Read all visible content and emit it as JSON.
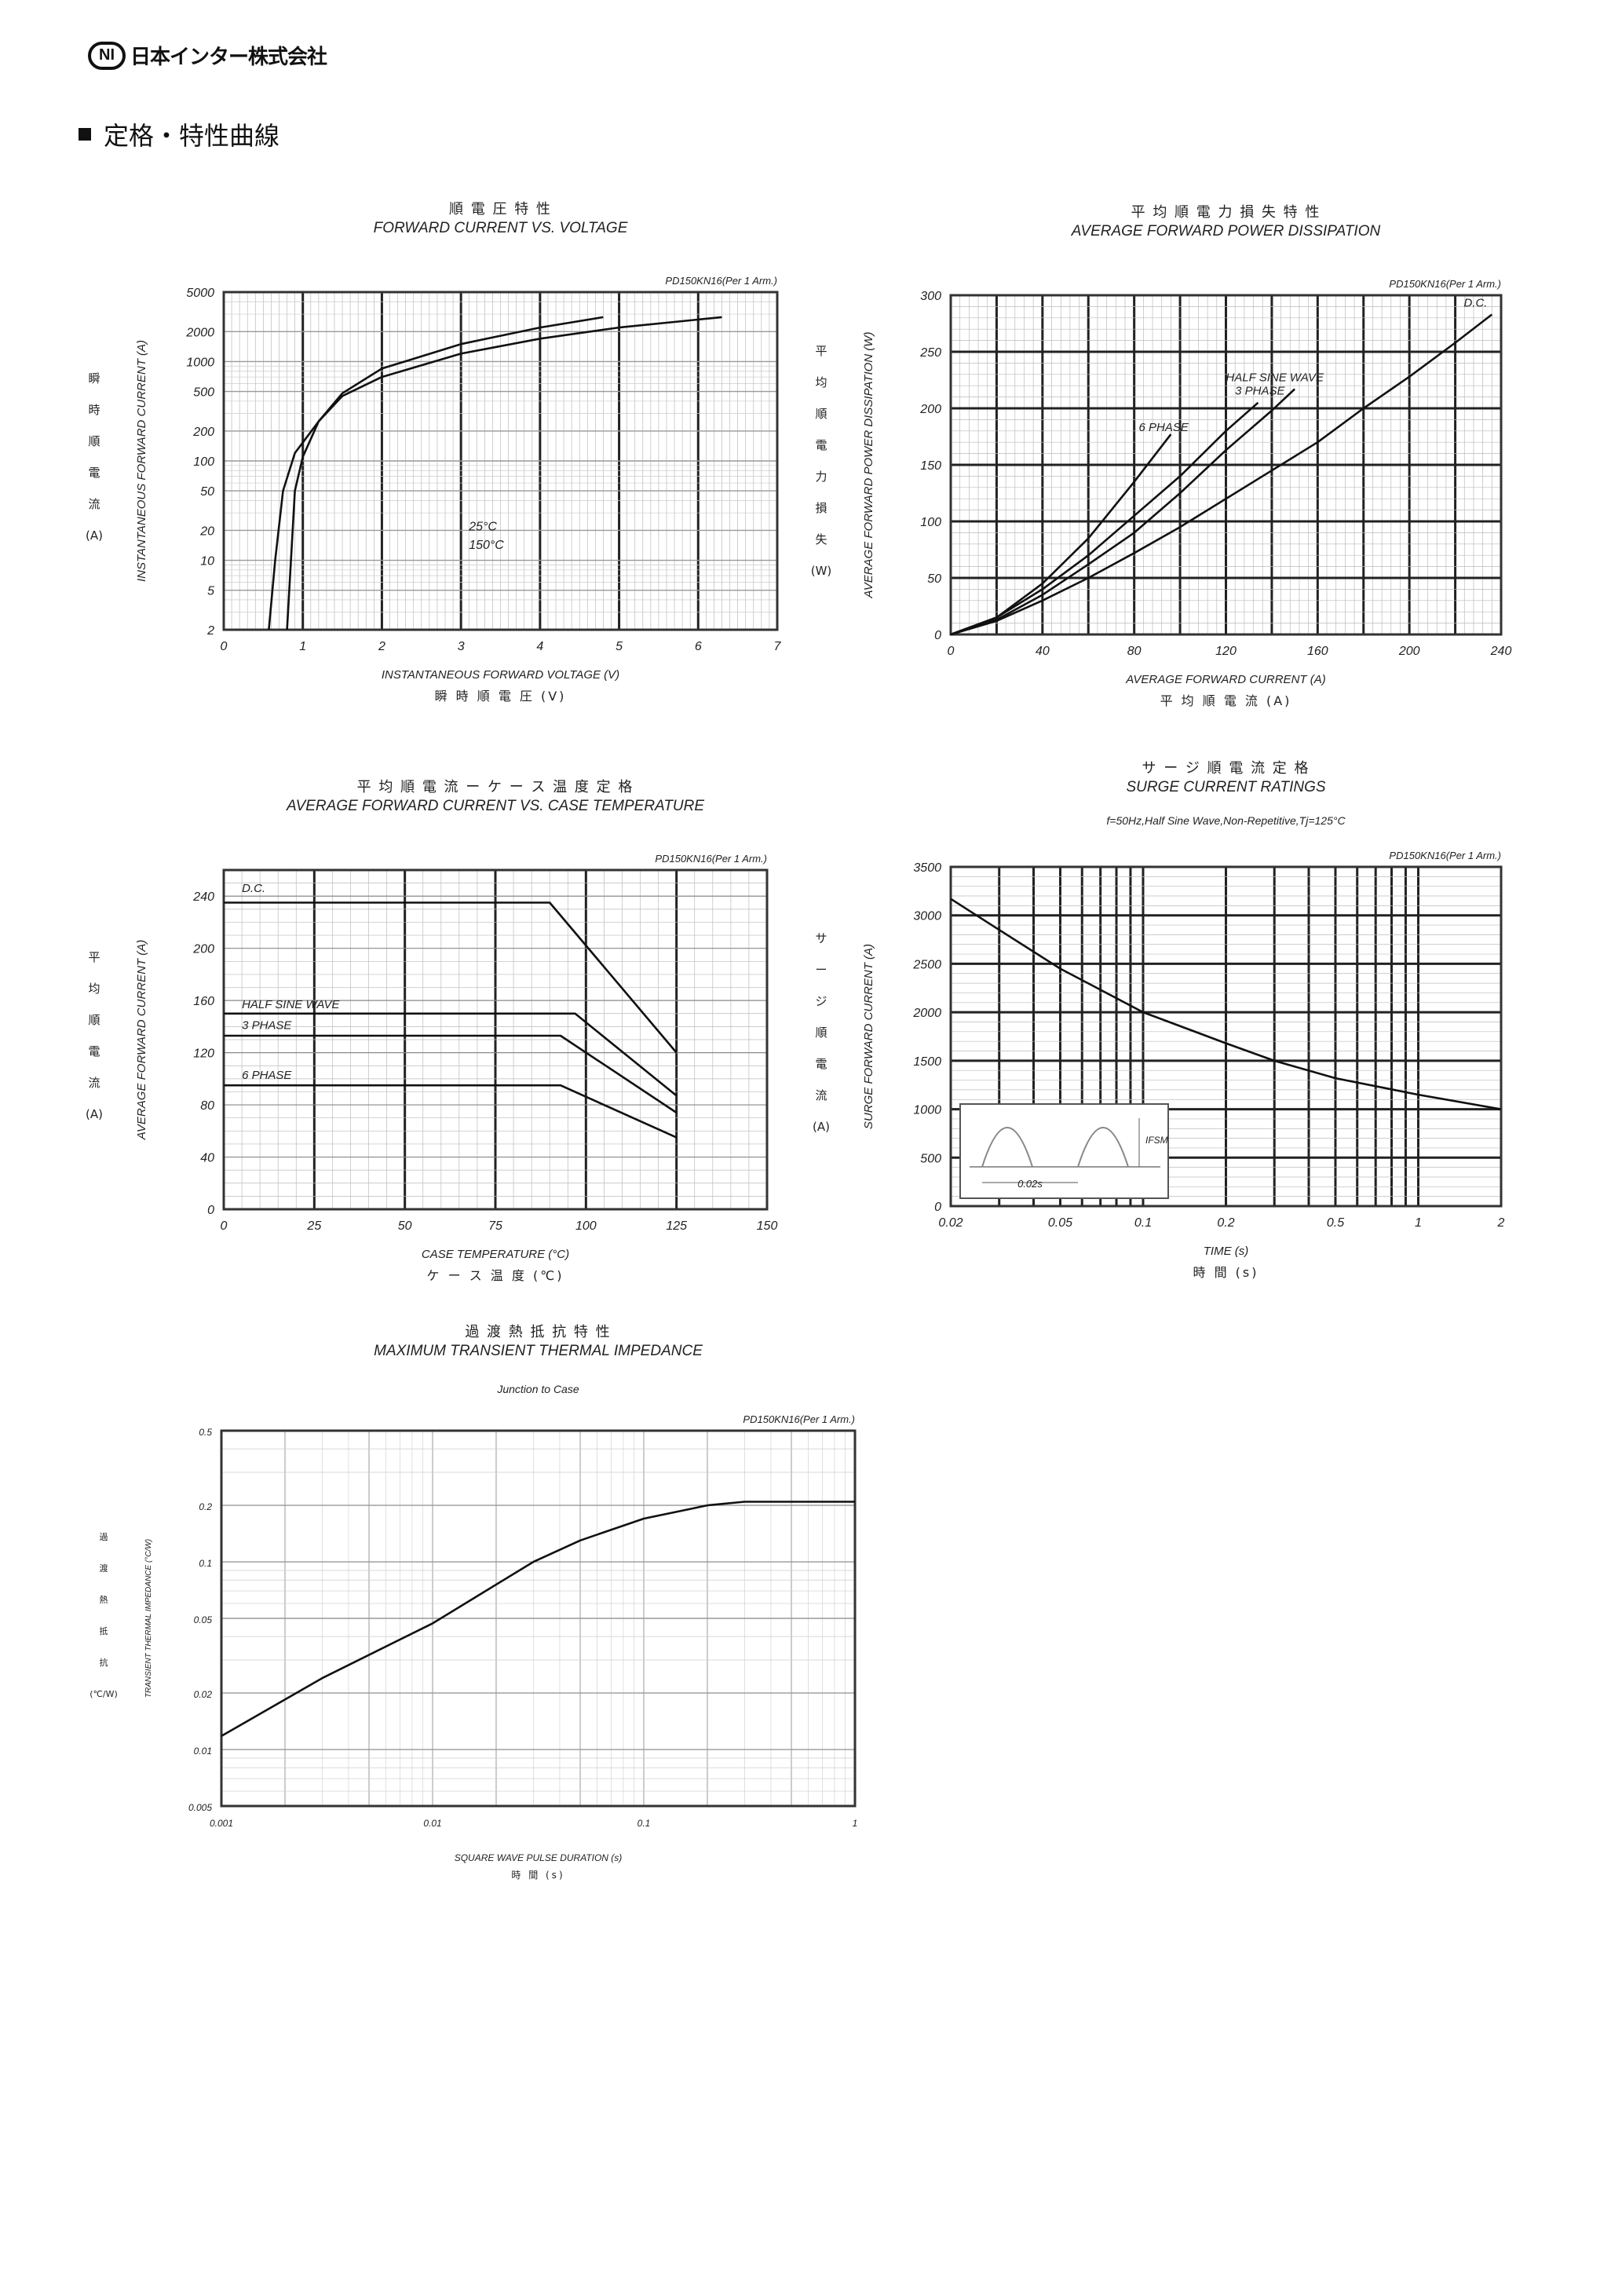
{
  "header": {
    "company": "日本インター株式会社",
    "logo_mark": "NI",
    "section_title": "定格・特性曲線"
  },
  "chart_data": [
    {
      "type": "line",
      "title_jp": "順 電 圧 特 性",
      "title": "FORWARD CURRENT VS. VOLTAGE",
      "model": "PD150KN16(Per 1 Arm.)",
      "xlabel": "INSTANTANEOUS FORWARD VOLTAGE (V)",
      "xlabel_jp": "瞬 時 順 電 圧  (V)",
      "ylabel": "INSTANTANEOUS FORWARD CURRENT (A)",
      "ylabel_jp": [
        "瞬",
        "時",
        "順",
        "電",
        "流",
        "(A)"
      ],
      "xlim": [
        0,
        7
      ],
      "ylim": [
        2,
        5000
      ],
      "yscale": "log",
      "xticks": [
        "0",
        "1",
        "2",
        "3",
        "4",
        "5",
        "6",
        "7"
      ],
      "yticks": [
        "2",
        "5",
        "10",
        "20",
        "50",
        "100",
        "200",
        "500",
        "1000",
        "2000",
        "5000"
      ],
      "grid": true,
      "series": [
        {
          "name": "25°C",
          "x": [
            0.8,
            0.85,
            0.9,
            1.0,
            1.2,
            1.5,
            2,
            3,
            4,
            5,
            6.3
          ],
          "y": [
            2,
            10,
            50,
            110,
            250,
            450,
            700,
            1200,
            1700,
            2200,
            2800
          ]
        },
        {
          "name": "150°C",
          "x": [
            0.57,
            0.65,
            0.75,
            0.9,
            1.2,
            1.5,
            2,
            3,
            4,
            4.8
          ],
          "y": [
            2,
            10,
            50,
            120,
            250,
            480,
            850,
            1500,
            2200,
            2800
          ]
        }
      ]
    },
    {
      "type": "line",
      "title_jp": "平 均 順 電 力 損 失 特 性",
      "title": "AVERAGE FORWARD POWER DISSIPATION",
      "model": "PD150KN16(Per 1 Arm.)",
      "xlabel": "AVERAGE FORWARD CURRENT (A)",
      "xlabel_jp": "平 均 順 電 流  (A)",
      "ylabel": "AVERAGE FORWARD POWER DISSIPATION (W)",
      "ylabel_jp": [
        "平",
        "均",
        "順",
        "電",
        "力",
        "損",
        "失",
        "(W)"
      ],
      "xlim": [
        0,
        240
      ],
      "ylim": [
        0,
        300
      ],
      "xticks": [
        "0",
        "40",
        "80",
        "120",
        "160",
        "200",
        "240"
      ],
      "yticks": [
        "0",
        "50",
        "100",
        "150",
        "200",
        "250",
        "300"
      ],
      "grid": true,
      "series": [
        {
          "name": "D.C.",
          "x": [
            0,
            20,
            40,
            60,
            80,
            100,
            120,
            140,
            160,
            180,
            200,
            220,
            236
          ],
          "y": [
            0,
            12,
            30,
            50,
            72,
            95,
            120,
            145,
            170,
            200,
            228,
            258,
            283
          ]
        },
        {
          "name": "HALF SINE WAVE",
          "x": [
            0,
            20,
            40,
            60,
            80,
            100,
            120,
            140,
            150
          ],
          "y": [
            0,
            13,
            35,
            62,
            90,
            125,
            163,
            198,
            217
          ]
        },
        {
          "name": "3 PHASE",
          "x": [
            0,
            20,
            40,
            60,
            80,
            100,
            120,
            134
          ],
          "y": [
            0,
            15,
            40,
            70,
            105,
            140,
            180,
            205
          ]
        },
        {
          "name": "6 PHASE",
          "x": [
            0,
            20,
            40,
            60,
            80,
            96
          ],
          "y": [
            0,
            15,
            45,
            85,
            135,
            177
          ]
        }
      ]
    },
    {
      "type": "line",
      "title_jp": "平 均 順 電 流 ー ケ ー ス 温 度 定 格",
      "title": "AVERAGE FORWARD CURRENT VS. CASE TEMPERATURE",
      "model": "PD150KN16(Per 1 Arm.)",
      "xlabel": "CASE TEMPERATURE (°C)",
      "xlabel_jp": "ケ ー ス 温 度  (℃)",
      "ylabel": "AVERAGE FORWARD CURRENT (A)",
      "ylabel_jp": [
        "平",
        "均",
        "順",
        "電",
        "流",
        "(A)"
      ],
      "xlim": [
        0,
        150
      ],
      "ylim": [
        0,
        260
      ],
      "xticks": [
        "0",
        "25",
        "50",
        "75",
        "100",
        "125",
        "150"
      ],
      "yticks": [
        "0",
        "40",
        "80",
        "120",
        "160",
        "200",
        "240"
      ],
      "grid": true,
      "series": [
        {
          "name": "D.C.",
          "x": [
            0,
            90,
            125
          ],
          "y": [
            235,
            235,
            120
          ]
        },
        {
          "name": "HALF SINE WAVE",
          "x": [
            0,
            97,
            125
          ],
          "y": [
            150,
            150,
            87
          ]
        },
        {
          "name": "3 PHASE",
          "x": [
            0,
            93,
            125
          ],
          "y": [
            133,
            133,
            74
          ]
        },
        {
          "name": "6 PHASE",
          "x": [
            0,
            93,
            125
          ],
          "y": [
            95,
            95,
            55
          ]
        }
      ]
    },
    {
      "type": "line",
      "title_jp": "サ ー ジ 順 電 流 定 格",
      "title": "SURGE CURRENT RATINGS",
      "subtitle": "f=50Hz,Half Sine Wave,Non-Repetitive,Tj=125°C",
      "model": "PD150KN16(Per 1 Arm.)",
      "xlabel": "TIME (s)",
      "xlabel_jp": "時 間  (s)",
      "ylabel": "SURGE FORWARD CURRENT (A)",
      "ylabel_jp": [
        "サ",
        "ー",
        "ジ",
        "順",
        "電",
        "流",
        "(A)"
      ],
      "xlim": [
        0.02,
        2
      ],
      "xscale": "log",
      "ylim": [
        0,
        3500
      ],
      "xticks": [
        "0.02",
        "0.05",
        "0.1",
        "0.2",
        "0.5",
        "1",
        "2"
      ],
      "yticks": [
        "0",
        "500",
        "1000",
        "1500",
        "2000",
        "2500",
        "3000",
        "3500"
      ],
      "grid": true,
      "inset": {
        "period": "0.02s",
        "peak": "IFSM"
      },
      "series": [
        {
          "x": [
            0.02,
            0.03,
            0.05,
            0.1,
            0.2,
            0.3,
            0.5,
            1,
            2
          ],
          "y": [
            3170,
            2850,
            2450,
            2000,
            1680,
            1500,
            1320,
            1150,
            1000
          ]
        }
      ]
    },
    {
      "type": "line",
      "title_jp": "過 渡 熱 抵 抗 特 性",
      "title": "MAXIMUM TRANSIENT THERMAL IMPEDANCE",
      "subtitle": "Junction to Case",
      "model": "PD150KN16(Per 1 Arm.)",
      "xlabel": "SQUARE WAVE PULSE DURATION (s)",
      "xlabel_jp": "時 間  (s)",
      "ylabel": "TRANSIENT THERMAL IMPEDANCE (°C/W)",
      "ylabel_jp": [
        "過",
        "渡",
        "熱",
        "抵",
        "抗",
        "(℃/W)"
      ],
      "xlim": [
        0.001,
        1
      ],
      "xscale": "log",
      "ylim": [
        0.005,
        0.5
      ],
      "yscale": "log",
      "xticks": [
        "0.001",
        "0.01",
        "0.1",
        "1"
      ],
      "yticks": [
        "0.005",
        "0.01",
        "0.02",
        "0.05",
        "0.1",
        "0.2",
        "0.5"
      ],
      "grid": true,
      "series": [
        {
          "x": [
            0.001,
            0.003,
            0.01,
            0.03,
            0.05,
            0.1,
            0.2,
            0.3,
            1
          ],
          "y": [
            0.0118,
            0.024,
            0.047,
            0.1,
            0.13,
            0.17,
            0.2,
            0.209,
            0.209
          ]
        }
      ]
    }
  ]
}
